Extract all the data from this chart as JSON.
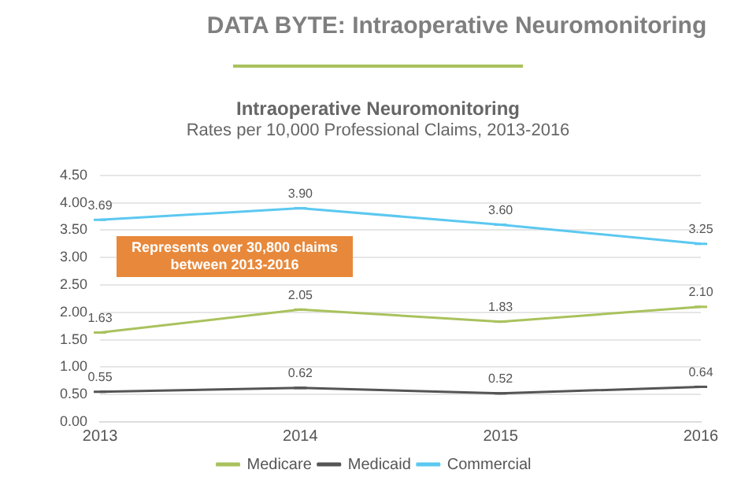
{
  "chart_data": {
    "type": "line",
    "title": "Intraoperative Neuromonitoring",
    "subtitle": "Rates per 10,000 Professional Claims, 2013-2016",
    "annotations": [
      "DATA BYTE: Intraoperative Neuromonitoring",
      "Represents over 30,800 claims between 2013-2016"
    ],
    "categories": [
      "2013",
      "2014",
      "2015",
      "2016"
    ],
    "series": [
      {
        "name": "Medicare",
        "color": "#a9c25d",
        "values": [
          1.63,
          2.05,
          1.83,
          2.1
        ],
        "value_labels": [
          "1.63",
          "2.05",
          "1.83",
          "2.10"
        ]
      },
      {
        "name": "Medicaid",
        "color": "#555555",
        "values": [
          0.55,
          0.62,
          0.52,
          0.64
        ]
      },
      {
        "name": "Commercial",
        "color": "#5bc8f0",
        "values": [
          3.69,
          3.9,
          3.6,
          3.25
        ],
        "value_labels": [
          "3.69",
          "3.90",
          "3.60",
          "3.25"
        ]
      }
    ],
    "data_labels": true,
    "ylim": [
      0,
      4.5
    ],
    "yticks": [
      {
        "value": 0,
        "label": "0.00"
      },
      {
        "value": 0.5,
        "label": "0.50"
      },
      {
        "value": 1,
        "label": "1.00"
      },
      {
        "value": 1.5,
        "label": "1.50"
      },
      {
        "value": 2,
        "label": "2.00"
      },
      {
        "value": 2.5,
        "label": "2.50"
      },
      {
        "value": 3,
        "label": "3.00"
      },
      {
        "value": 3.5,
        "label": "3.50"
      },
      {
        "value": 4,
        "label": "4.00"
      },
      {
        "value": 4.5,
        "label": "4.50"
      }
    ],
    "grid": "y",
    "legend": "bottom",
    "marker": "none",
    "line_style": "solid"
  }
}
